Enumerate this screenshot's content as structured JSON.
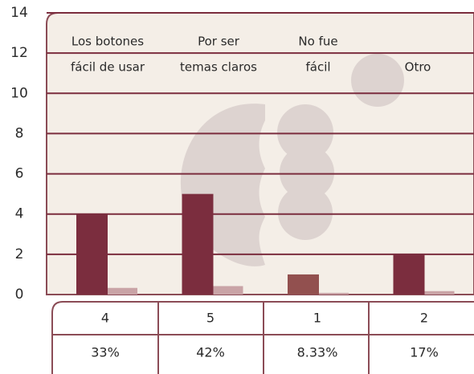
{
  "chart_data": {
    "type": "bar",
    "categories": [
      [
        "Los botones",
        "fácil de usar"
      ],
      [
        "Por ser",
        "temas claros"
      ],
      [
        "No fue",
        "fácil"
      ],
      [
        "Otro"
      ]
    ],
    "series": [
      {
        "color": "#7b2d3e",
        "colors": [
          "#7b2d3e",
          "#7b2d3e",
          "#92504f",
          "#7b2d3e"
        ],
        "values": [
          4,
          5,
          1,
          2
        ]
      },
      {
        "color": "#c9a3a6",
        "values": [
          0.33,
          0.42,
          0.0833,
          0.17
        ],
        "value_labels": [
          "33%",
          "42%",
          "8.33%",
          "17%"
        ]
      }
    ],
    "ylim": [
      0,
      14
    ],
    "yticks": [
      0,
      2,
      4,
      6,
      8,
      10,
      12,
      14
    ],
    "grid": true
  }
}
